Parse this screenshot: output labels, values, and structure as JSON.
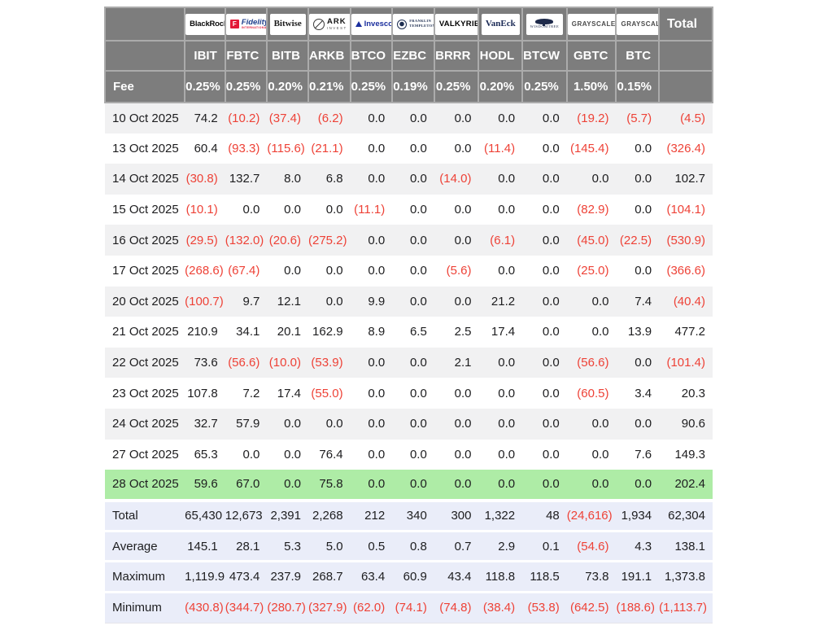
{
  "colors": {
    "header_bg": "#7d7d7d",
    "header_border": "#ababab",
    "stripe_gray": "#f1f1f2",
    "highlight_green": "#aeeca6",
    "summary_lavender": "#eaedf9",
    "negative_red": "#ee4237",
    "text_dark": "#1d1d1f",
    "header_text": "#ffffff"
  },
  "chart_data": {
    "type": "table",
    "row_label_header": "Fee",
    "total_label": "Total",
    "columns": [
      {
        "name": "BlackRock",
        "ticker": "IBIT",
        "fee": "0.25%",
        "logo": {
          "style": "blackrock",
          "lines": [
            "BlackRock"
          ]
        }
      },
      {
        "name": "Fidelity",
        "ticker": "FBTC",
        "fee": "0.25%",
        "logo": {
          "style": "fidelity",
          "lines": [
            "F",
            "Fidelity",
            "INTERNATIONAL"
          ]
        }
      },
      {
        "name": "Bitwise",
        "ticker": "BITB",
        "fee": "0.20%",
        "logo": {
          "style": "bitwise",
          "lines": [
            "Bitwise"
          ]
        }
      },
      {
        "name": "ARK Invest",
        "ticker": "ARKB",
        "fee": "0.21%",
        "logo": {
          "style": "ark",
          "lines": [
            "ARK",
            "INVEST"
          ]
        }
      },
      {
        "name": "Invesco",
        "ticker": "BTCO",
        "fee": "0.25%",
        "logo": {
          "style": "invesco",
          "lines": [
            "Invesco"
          ]
        }
      },
      {
        "name": "Franklin Templeton",
        "ticker": "EZBC",
        "fee": "0.19%",
        "logo": {
          "style": "franklin",
          "lines": [
            "FRANKLIN",
            "TEMPLETON"
          ]
        }
      },
      {
        "name": "Valkyrie",
        "ticker": "BRRR",
        "fee": "0.25%",
        "logo": {
          "style": "valkyrie",
          "lines": [
            "VALKYRIE"
          ]
        }
      },
      {
        "name": "VanEck",
        "ticker": "HODL",
        "fee": "0.20%",
        "logo": {
          "style": "vaneck",
          "lines": [
            "VanEck"
          ]
        }
      },
      {
        "name": "WisdomTree",
        "ticker": "BTCW",
        "fee": "0.25%",
        "logo": {
          "style": "wisdomtree",
          "lines": [
            "WISDOMTREE"
          ]
        }
      },
      {
        "name": "Grayscale",
        "ticker": "GBTC",
        "fee": "1.50%",
        "logo": {
          "style": "grayscale",
          "lines": [
            "GRAYSCALE"
          ]
        }
      },
      {
        "name": "Grayscale",
        "ticker": "BTC",
        "fee": "0.15%",
        "logo": {
          "style": "grayscale",
          "lines": [
            "GRAYSCALE"
          ]
        }
      }
    ],
    "rows": [
      {
        "date": "10 Oct 2025",
        "highlight": false,
        "values": [
          "74.2",
          "(10.2)",
          "(37.4)",
          "(6.2)",
          "0.0",
          "0.0",
          "0.0",
          "0.0",
          "0.0",
          "(19.2)",
          "(5.7)",
          "(4.5)"
        ]
      },
      {
        "date": "13 Oct 2025",
        "highlight": false,
        "values": [
          "60.4",
          "(93.3)",
          "(115.6)",
          "(21.1)",
          "0.0",
          "0.0",
          "0.0",
          "(11.4)",
          "0.0",
          "(145.4)",
          "0.0",
          "(326.4)"
        ]
      },
      {
        "date": "14 Oct 2025",
        "highlight": false,
        "values": [
          "(30.8)",
          "132.7",
          "8.0",
          "6.8",
          "0.0",
          "0.0",
          "(14.0)",
          "0.0",
          "0.0",
          "0.0",
          "0.0",
          "102.7"
        ]
      },
      {
        "date": "15 Oct 2025",
        "highlight": false,
        "values": [
          "(10.1)",
          "0.0",
          "0.0",
          "0.0",
          "(11.1)",
          "0.0",
          "0.0",
          "0.0",
          "0.0",
          "(82.9)",
          "0.0",
          "(104.1)"
        ]
      },
      {
        "date": "16 Oct 2025",
        "highlight": false,
        "values": [
          "(29.5)",
          "(132.0)",
          "(20.6)",
          "(275.2)",
          "0.0",
          "0.0",
          "0.0",
          "(6.1)",
          "0.0",
          "(45.0)",
          "(22.5)",
          "(530.9)"
        ]
      },
      {
        "date": "17 Oct 2025",
        "highlight": false,
        "values": [
          "(268.6)",
          "(67.4)",
          "0.0",
          "0.0",
          "0.0",
          "0.0",
          "(5.6)",
          "0.0",
          "0.0",
          "(25.0)",
          "0.0",
          "(366.6)"
        ]
      },
      {
        "date": "20 Oct 2025",
        "highlight": false,
        "values": [
          "(100.7)",
          "9.7",
          "12.1",
          "0.0",
          "9.9",
          "0.0",
          "0.0",
          "21.2",
          "0.0",
          "0.0",
          "7.4",
          "(40.4)"
        ]
      },
      {
        "date": "21 Oct 2025",
        "highlight": false,
        "values": [
          "210.9",
          "34.1",
          "20.1",
          "162.9",
          "8.9",
          "6.5",
          "2.5",
          "17.4",
          "0.0",
          "0.0",
          "13.9",
          "477.2"
        ]
      },
      {
        "date": "22 Oct 2025",
        "highlight": false,
        "values": [
          "73.6",
          "(56.6)",
          "(10.0)",
          "(53.9)",
          "0.0",
          "0.0",
          "2.1",
          "0.0",
          "0.0",
          "(56.6)",
          "0.0",
          "(101.4)"
        ]
      },
      {
        "date": "23 Oct 2025",
        "highlight": false,
        "values": [
          "107.8",
          "7.2",
          "17.4",
          "(55.0)",
          "0.0",
          "0.0",
          "0.0",
          "0.0",
          "0.0",
          "(60.5)",
          "3.4",
          "20.3"
        ]
      },
      {
        "date": "24 Oct 2025",
        "highlight": false,
        "values": [
          "32.7",
          "57.9",
          "0.0",
          "0.0",
          "0.0",
          "0.0",
          "0.0",
          "0.0",
          "0.0",
          "0.0",
          "0.0",
          "90.6"
        ]
      },
      {
        "date": "27 Oct 2025",
        "highlight": false,
        "values": [
          "65.3",
          "0.0",
          "0.0",
          "76.4",
          "0.0",
          "0.0",
          "0.0",
          "0.0",
          "0.0",
          "0.0",
          "7.6",
          "149.3"
        ]
      },
      {
        "date": "28 Oct 2025",
        "highlight": true,
        "values": [
          "59.6",
          "67.0",
          "0.0",
          "75.8",
          "0.0",
          "0.0",
          "0.0",
          "0.0",
          "0.0",
          "0.0",
          "0.0",
          "202.4"
        ]
      }
    ],
    "summary": [
      {
        "label": "Total",
        "values": [
          "65,430",
          "12,673",
          "2,391",
          "2,268",
          "212",
          "340",
          "300",
          "1,322",
          "48",
          "(24,616)",
          "1,934",
          "62,304"
        ]
      },
      {
        "label": "Average",
        "values": [
          "145.1",
          "28.1",
          "5.3",
          "5.0",
          "0.5",
          "0.8",
          "0.7",
          "2.9",
          "0.1",
          "(54.6)",
          "4.3",
          "138.1"
        ]
      },
      {
        "label": "Maximum",
        "values": [
          "1,119.9",
          "473.4",
          "237.9",
          "268.7",
          "63.4",
          "60.9",
          "43.4",
          "118.8",
          "118.5",
          "73.8",
          "191.1",
          "1,373.8"
        ]
      },
      {
        "label": "Minimum",
        "values": [
          "(430.8)",
          "(344.7)",
          "(280.7)",
          "(327.9)",
          "(62.0)",
          "(74.1)",
          "(74.8)",
          "(38.4)",
          "(53.8)",
          "(642.5)",
          "(188.6)",
          "(1,113.7)"
        ]
      }
    ]
  }
}
